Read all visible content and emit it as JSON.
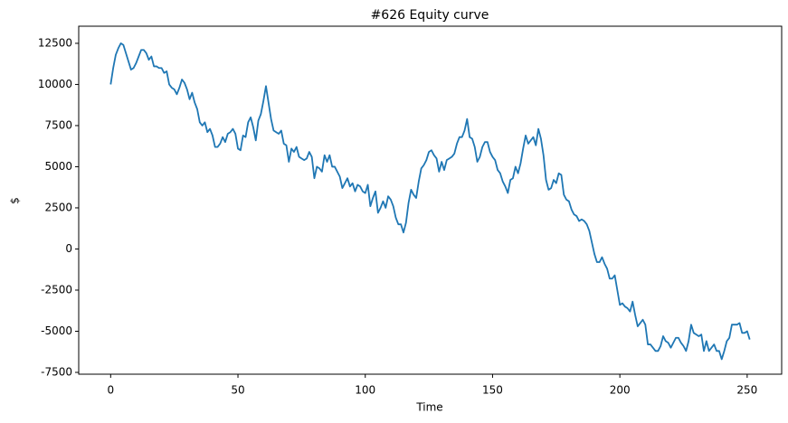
{
  "chart_data": {
    "type": "line",
    "title": "#626 Equity curve",
    "x_label": "Time",
    "y_label": "$",
    "x": [
      0,
      1,
      2,
      3,
      4,
      5,
      6,
      7,
      8,
      9,
      10,
      11,
      12,
      13,
      14,
      15,
      16,
      17,
      18,
      19,
      20,
      21,
      22,
      23,
      24,
      25,
      26,
      27,
      28,
      29,
      30,
      31,
      32,
      33,
      34,
      35,
      36,
      37,
      38,
      39,
      40,
      41,
      42,
      43,
      44,
      45,
      46,
      47,
      48,
      49,
      50,
      51,
      52,
      53,
      54,
      55,
      56,
      57,
      58,
      59,
      60,
      61,
      62,
      63,
      64,
      65,
      66,
      67,
      68,
      69,
      70,
      71,
      72,
      73,
      74,
      75,
      76,
      77,
      78,
      79,
      80,
      81,
      82,
      83,
      84,
      85,
      86,
      87,
      88,
      89,
      90,
      91,
      92,
      93,
      94,
      95,
      96,
      97,
      98,
      99,
      100,
      101,
      102,
      103,
      104,
      105,
      106,
      107,
      108,
      109,
      110,
      111,
      112,
      113,
      114,
      115,
      116,
      117,
      118,
      119,
      120,
      121,
      122,
      123,
      124,
      125,
      126,
      127,
      128,
      129,
      130,
      131,
      132,
      133,
      134,
      135,
      136,
      137,
      138,
      139,
      140,
      141,
      142,
      143,
      144,
      145,
      146,
      147,
      148,
      149,
      150,
      151,
      152,
      153,
      154,
      155,
      156,
      157,
      158,
      159,
      160,
      161,
      162,
      163,
      164,
      165,
      166,
      167,
      168,
      169,
      170,
      171,
      172,
      173,
      174,
      175,
      176,
      177,
      178,
      179,
      180,
      181,
      182,
      183,
      184,
      185,
      186,
      187,
      188,
      189,
      190,
      191,
      192,
      193,
      194,
      195,
      196,
      197,
      198,
      199,
      200,
      201,
      202,
      203,
      204,
      205,
      206,
      207,
      208,
      209,
      210,
      211,
      212,
      213,
      214,
      215,
      216,
      217,
      218,
      219,
      220,
      221,
      222,
      223,
      224,
      225,
      226,
      227,
      228,
      229,
      230,
      231,
      232,
      233,
      234,
      235,
      236,
      237,
      238,
      239,
      240,
      241,
      242,
      243,
      244,
      245,
      246,
      247,
      248,
      249,
      250,
      251
    ],
    "series": [
      {
        "name": "Equity",
        "color": "#1f77b4",
        "values": [
          10000,
          11000,
          11800,
          12200,
          12500,
          12400,
          11900,
          11400,
          10900,
          11000,
          11300,
          11700,
          12100,
          12100,
          11900,
          11500,
          11700,
          11100,
          11100,
          11000,
          11000,
          10700,
          10800,
          10000,
          9800,
          9700,
          9400,
          9800,
          10300,
          10100,
          9700,
          9100,
          9500,
          8900,
          8500,
          7700,
          7500,
          7700,
          7100,
          7300,
          6900,
          6200,
          6200,
          6400,
          6800,
          6500,
          7000,
          7100,
          7300,
          7000,
          6100,
          6000,
          6900,
          6800,
          7700,
          8000,
          7400,
          6600,
          7800,
          8200,
          9000,
          9900,
          8900,
          7900,
          7200,
          7100,
          7000,
          7200,
          6400,
          6300,
          5300,
          6100,
          5900,
          6200,
          5600,
          5500,
          5400,
          5500,
          5900,
          5600,
          4300,
          5000,
          4900,
          4700,
          5700,
          5300,
          5700,
          5000,
          5000,
          4700,
          4400,
          3700,
          4000,
          4300,
          3800,
          4000,
          3500,
          3900,
          3800,
          3500,
          3400,
          3900,
          2600,
          3100,
          3500,
          2200,
          2500,
          2900,
          2500,
          3200,
          3000,
          2600,
          1900,
          1500,
          1500,
          1000,
          1600,
          2800,
          3600,
          3300,
          3100,
          4100,
          4900,
          5100,
          5400,
          5900,
          6000,
          5700,
          5500,
          4700,
          5300,
          4800,
          5400,
          5500,
          5600,
          5800,
          6400,
          6800,
          6800,
          7200,
          7900,
          6800,
          6700,
          6200,
          5300,
          5600,
          6200,
          6500,
          6500,
          5900,
          5600,
          5400,
          4800,
          4600,
          4100,
          3800,
          3400,
          4200,
          4300,
          5000,
          4600,
          5200,
          6100,
          6900,
          6400,
          6600,
          6800,
          6300,
          7300,
          6700,
          5700,
          4200,
          3600,
          3700,
          4200,
          4000,
          4600,
          4500,
          3300,
          3000,
          2900,
          2400,
          2100,
          2000,
          1700,
          1800,
          1700,
          1500,
          1100,
          400,
          -300,
          -800,
          -800,
          -500,
          -900,
          -1200,
          -1800,
          -1800,
          -1600,
          -2500,
          -3400,
          -3300,
          -3500,
          -3600,
          -3800,
          -3200,
          -4000,
          -4700,
          -4500,
          -4300,
          -4600,
          -5800,
          -5800,
          -6000,
          -6200,
          -6200,
          -5900,
          -5300,
          -5600,
          -5700,
          -6000,
          -5700,
          -5400,
          -5400,
          -5700,
          -5900,
          -6200,
          -5600,
          -4600,
          -5100,
          -5200,
          -5300,
          -5200,
          -6200,
          -5600,
          -6200,
          -6000,
          -5800,
          -6200,
          -6200,
          -6700,
          -6200,
          -5600,
          -5400,
          -4600,
          -4600,
          -4600,
          -4500,
          -5100,
          -5100,
          -5000,
          -5500
        ]
      }
    ],
    "xlim": [
      -12.55,
      263.55
    ],
    "xticks": [
      0,
      50,
      100,
      150,
      200,
      250
    ],
    "ylim": [
      -7610,
      13540
    ],
    "yticks": [
      -7500,
      -5000,
      -2500,
      0,
      2500,
      5000,
      7500,
      10000,
      12500
    ],
    "grid": false
  }
}
